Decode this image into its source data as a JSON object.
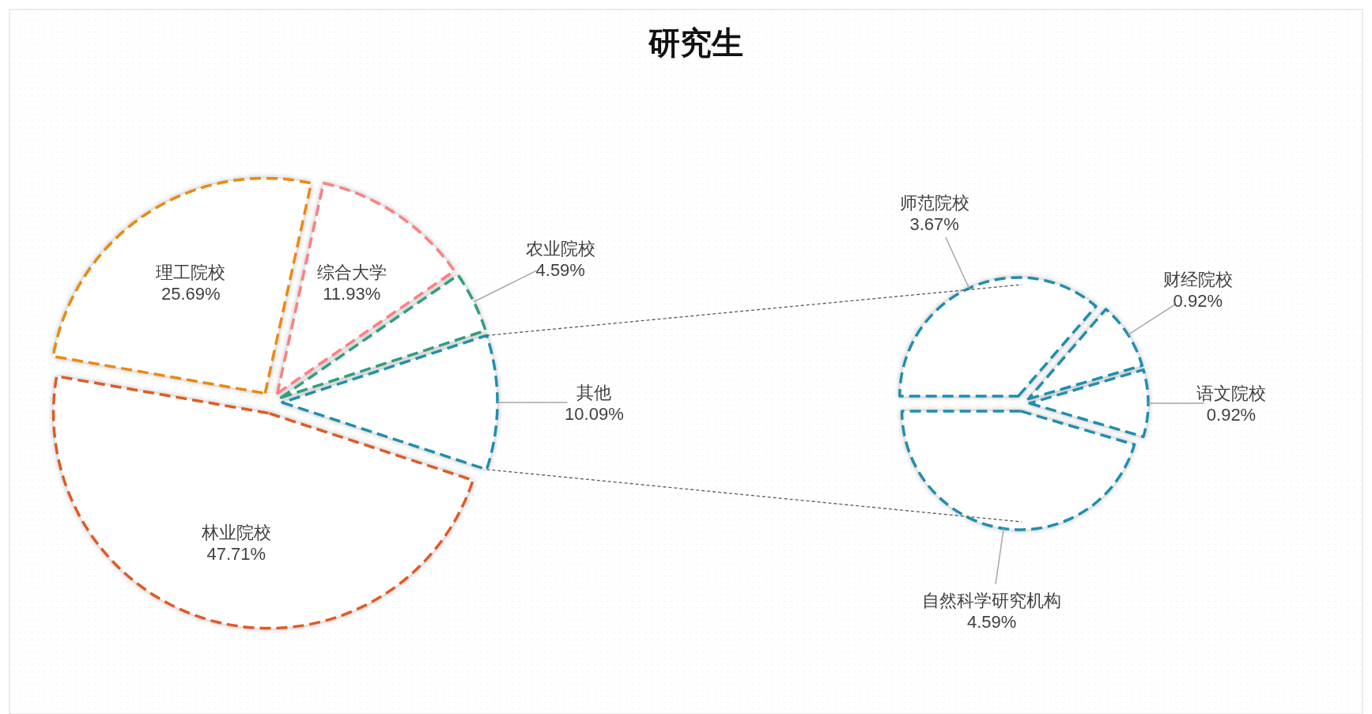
{
  "chart_data": [
    {
      "type": "pie",
      "title": "研究生",
      "categories": [
        "其他",
        "农业院校",
        "综合大学",
        "理工院校",
        "林业院校"
      ],
      "values": [
        10.09,
        4.59,
        11.93,
        25.69,
        47.71
      ],
      "colors": [
        "#1f8fae",
        "#2e9e7e",
        "#ff7f7f",
        "#e88b0c",
        "#e05a24"
      ],
      "value_labels": [
        "10.09%",
        "4.59%",
        "11.93%",
        "25.69%",
        "47.71%"
      ]
    },
    {
      "type": "pie",
      "categories": [
        "自然科学研究机构",
        "语文院校",
        "财经院校",
        "师范院校"
      ],
      "values": [
        4.59,
        0.92,
        0.92,
        3.67
      ],
      "colors": [
        "#1f8fae",
        "#1f8fae",
        "#1f8fae",
        "#1f8fae"
      ],
      "value_labels": [
        "4.59%",
        "0.92%",
        "0.92%",
        "3.67%"
      ]
    }
  ]
}
